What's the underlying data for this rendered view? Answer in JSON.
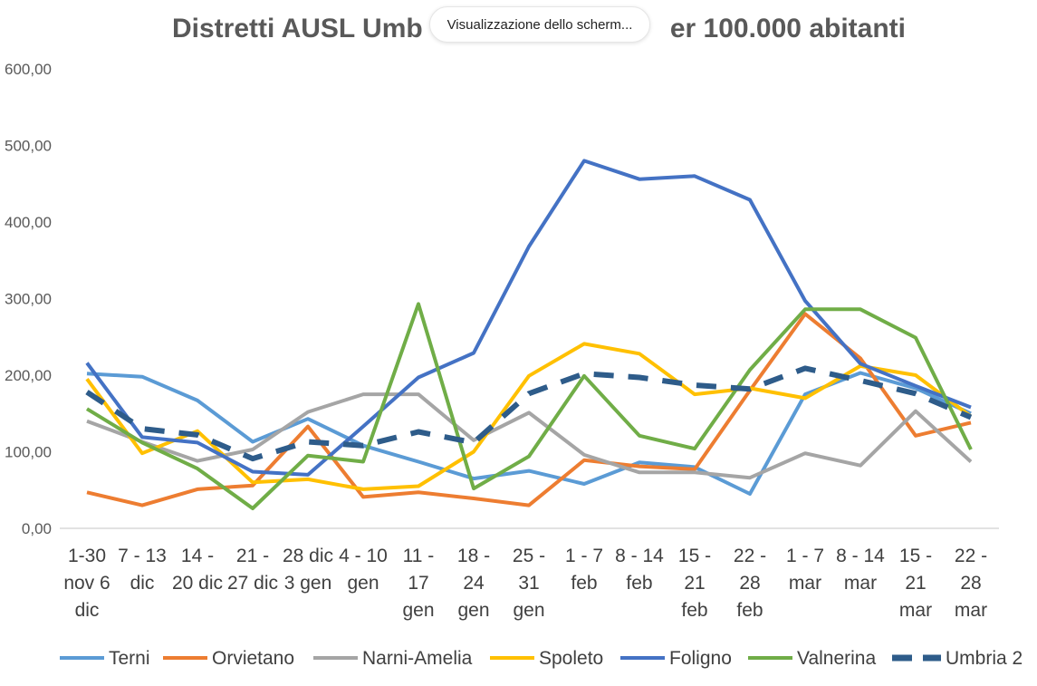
{
  "tooltip": {
    "text": "Visualizzazione dello scherm..."
  },
  "chart_data": {
    "type": "line",
    "title_left": "Distretti AUSL Umb",
    "title_right": "er 100.000 abitanti",
    "ylim": [
      0,
      600
    ],
    "yticks": [
      "0,00",
      "100,00",
      "200,00",
      "300,00",
      "400,00",
      "500,00",
      "600,00"
    ],
    "grid": false,
    "legend_position": "bottom",
    "categories": [
      [
        "1-30",
        "nov 6",
        "dic"
      ],
      [
        "7 - 13",
        "dic"
      ],
      [
        "14 -",
        "20 dic"
      ],
      [
        "21 -",
        "27 dic"
      ],
      [
        "28 dic",
        "3 gen"
      ],
      [
        "4 - 10",
        "gen"
      ],
      [
        "11 -",
        "17",
        "gen"
      ],
      [
        "18 -",
        "24",
        "gen"
      ],
      [
        "25 -",
        "31",
        "gen"
      ],
      [
        "1 - 7",
        "feb"
      ],
      [
        "8 - 14",
        "feb"
      ],
      [
        "15 -",
        "21",
        "feb"
      ],
      [
        "22 -",
        "28",
        "feb"
      ],
      [
        "1 - 7",
        "mar"
      ],
      [
        "8 - 14",
        "mar"
      ],
      [
        "15 -",
        "21",
        "mar"
      ],
      [
        "22 -",
        "28",
        "mar"
      ]
    ],
    "series": [
      {
        "name": "Terni",
        "color": "#5B9BD5",
        "dashed": false,
        "values": [
          202,
          198,
          167,
          113,
          143,
          108,
          87,
          65,
          75,
          58,
          86,
          80,
          45,
          175,
          203,
          183,
          150
        ]
      },
      {
        "name": "Orvietano",
        "color": "#ED7D31",
        "dashed": false,
        "values": [
          47,
          30,
          51,
          56,
          133,
          41,
          47,
          39,
          30,
          89,
          81,
          77,
          180,
          280,
          222,
          121,
          138
        ]
      },
      {
        "name": "Narni-Amelia",
        "color": "#A5A5A5",
        "dashed": false,
        "values": [
          140,
          113,
          88,
          103,
          152,
          175,
          175,
          115,
          151,
          96,
          73,
          73,
          66,
          98,
          82,
          153,
          87
        ]
      },
      {
        "name": "Spoleto",
        "color": "#FFC000",
        "dashed": false,
        "values": [
          195,
          98,
          127,
          60,
          64,
          51,
          55,
          100,
          199,
          241,
          228,
          175,
          183,
          170,
          212,
          200,
          146
        ]
      },
      {
        "name": "Foligno",
        "color": "#4472C4",
        "dashed": false,
        "values": [
          216,
          119,
          112,
          74,
          70,
          133,
          197,
          229,
          368,
          480,
          456,
          460,
          429,
          297,
          215,
          186,
          158
        ]
      },
      {
        "name": "Valnerina",
        "color": "#70AD47",
        "dashed": false,
        "values": [
          156,
          112,
          78,
          26,
          95,
          87,
          293,
          52,
          94,
          199,
          121,
          104,
          207,
          286,
          286,
          249,
          103
        ]
      },
      {
        "name": "Umbria 2",
        "color": "#2E5C8A",
        "dashed": true,
        "values": [
          178,
          130,
          122,
          91,
          113,
          108,
          126,
          112,
          176,
          202,
          197,
          187,
          182,
          209,
          193,
          176,
          145
        ]
      }
    ]
  }
}
